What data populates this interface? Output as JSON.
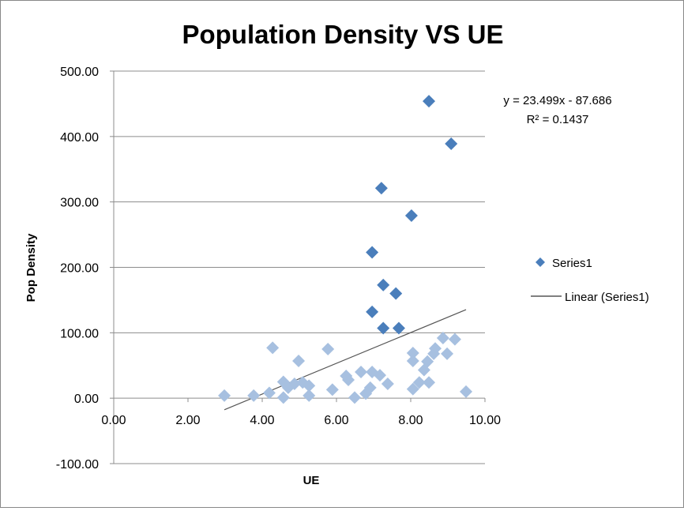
{
  "chart_data": {
    "type": "scatter",
    "title": "Population Density VS UE",
    "xlabel": "UE",
    "ylabel": "Pop Density",
    "xlim": [
      0,
      10
    ],
    "ylim": [
      -100,
      500
    ],
    "x_ticks": [
      "0.00",
      "2.00",
      "4.00",
      "6.00",
      "8.00",
      "10.00"
    ],
    "y_ticks": [
      "-100.00",
      "0.00",
      "100.00",
      "200.00",
      "300.00",
      "400.00",
      "500.00"
    ],
    "grid": "horizontal major",
    "legend_position": "right",
    "series": [
      {
        "name": "Series1",
        "color": "#4A7EBB",
        "points": [
          [
            2.98,
            4
          ],
          [
            3.77,
            4
          ],
          [
            4.19,
            8
          ],
          [
            4.28,
            77
          ],
          [
            4.57,
            25
          ],
          [
            4.57,
            1
          ],
          [
            4.7,
            16
          ],
          [
            4.87,
            22
          ],
          [
            4.98,
            57
          ],
          [
            5.09,
            24
          ],
          [
            5.26,
            19
          ],
          [
            5.26,
            4
          ],
          [
            5.77,
            75
          ],
          [
            5.89,
            13
          ],
          [
            6.26,
            34
          ],
          [
            6.32,
            28
          ],
          [
            6.49,
            1
          ],
          [
            6.66,
            40
          ],
          [
            6.79,
            7
          ],
          [
            6.91,
            16
          ],
          [
            6.96,
            40
          ],
          [
            6.96,
            132
          ],
          [
            6.96,
            223
          ],
          [
            7.17,
            35
          ],
          [
            7.21,
            321
          ],
          [
            7.26,
            107
          ],
          [
            7.26,
            173
          ],
          [
            7.38,
            22
          ],
          [
            7.6,
            160
          ],
          [
            7.68,
            107
          ],
          [
            8.02,
            279
          ],
          [
            8.06,
            14
          ],
          [
            8.06,
            57
          ],
          [
            8.06,
            69
          ],
          [
            8.23,
            24
          ],
          [
            8.36,
            43
          ],
          [
            8.45,
            56
          ],
          [
            8.49,
            24
          ],
          [
            8.49,
            454
          ],
          [
            8.62,
            68
          ],
          [
            8.66,
            76
          ],
          [
            8.87,
            92
          ],
          [
            8.98,
            68
          ],
          [
            9.09,
            389
          ],
          [
            9.19,
            90
          ],
          [
            9.49,
            10
          ]
        ]
      }
    ],
    "trendline": {
      "name": "Linear (Series1)",
      "type": "linear",
      "slope": 23.499,
      "intercept": -87.686,
      "x_range": [
        2.98,
        9.49
      ],
      "equation": "y = 23.499x - 87.686",
      "r_squared": "R² = 0.1437",
      "color": "#000000"
    }
  }
}
